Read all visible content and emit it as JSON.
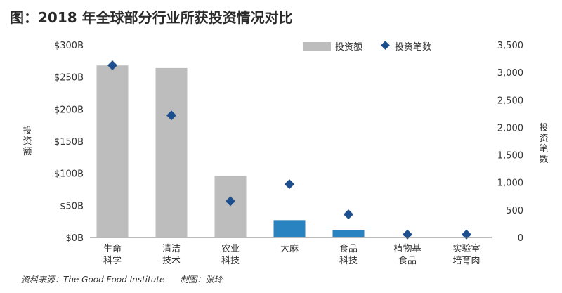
{
  "title": "图：2018 年全球部分行业所获投资情况对比",
  "source": {
    "text": "资料来源：The Good Food Institute",
    "author": "制图：张玲"
  },
  "colors": {
    "bar_gray": "#bdbdbd",
    "bar_blue": "#2a83c1",
    "marker": "#1d4f8e",
    "axis": "#777777",
    "text": "#333333"
  },
  "chart_data": {
    "type": "bar",
    "categories": [
      [
        "生命",
        "科学"
      ],
      [
        "清洁",
        "技术"
      ],
      [
        "农业",
        "科技"
      ],
      [
        "大麻"
      ],
      [
        "食品",
        "科技"
      ],
      [
        "植物基",
        "食品"
      ],
      [
        "实验室",
        "培育肉"
      ]
    ],
    "bar_colors": [
      "gray",
      "gray",
      "gray",
      "blue",
      "blue",
      "blue",
      "blue"
    ],
    "series": [
      {
        "name": "投资额",
        "axis": "left",
        "type": "bar",
        "values": [
          268,
          264,
          96,
          27,
          12,
          0.5,
          0.1
        ]
      },
      {
        "name": "投资笔数",
        "axis": "right",
        "type": "scatter",
        "values": [
          3130,
          2220,
          660,
          970,
          420,
          55,
          55
        ]
      }
    ],
    "left_axis": {
      "label": "投资额",
      "range": [
        0,
        300
      ],
      "ticks": [
        0,
        50,
        100,
        150,
        200,
        250,
        300
      ],
      "tick_labels": [
        "$0B",
        "$50B",
        "$100B",
        "$150B",
        "$200B",
        "$250B",
        "$300B"
      ]
    },
    "right_axis": {
      "label": "投资笔数",
      "range": [
        0,
        3500
      ],
      "ticks": [
        0,
        500,
        1000,
        1500,
        2000,
        2500,
        3000,
        3500
      ],
      "tick_labels": [
        "0",
        "500",
        "1,000",
        "1,500",
        "2,000",
        "2,500",
        "3,000",
        "3,500"
      ]
    },
    "legend_position": "top-right",
    "grid": false
  }
}
